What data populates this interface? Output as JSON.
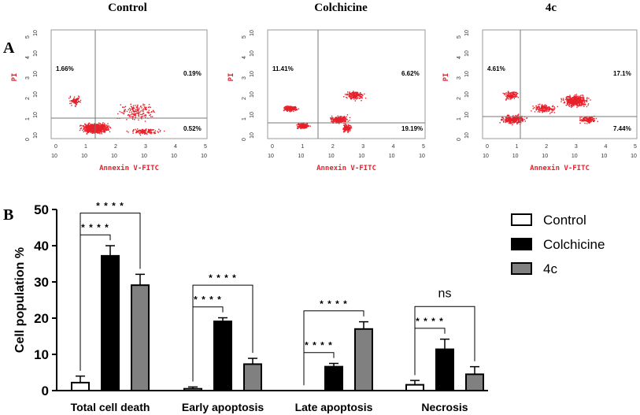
{
  "panels": {
    "a": "A",
    "b": "B"
  },
  "flow": {
    "xlabel": "Annexin V-FITC",
    "ylabel": "PI",
    "tick_base": "10",
    "x_exponents": [
      "0",
      "1",
      "2",
      "3",
      "4",
      "5"
    ],
    "y_exponents": [
      "0",
      "1",
      "2",
      "3",
      "4",
      "5"
    ],
    "quadrant_labels": [
      "UL",
      "UR",
      "LR"
    ],
    "plots": [
      {
        "title": "Control",
        "ul": "1.66%",
        "ur": "0.19%",
        "lr": "0.52%"
      },
      {
        "title": "Colchicine",
        "ul": "11.41%",
        "ur": "6.62%",
        "lr": "19.19%"
      },
      {
        "title": "4c",
        "ul": "4.61%",
        "ur": "17.1%",
        "lr": "7.44%"
      }
    ]
  },
  "colors": {
    "dots": "#e8202a",
    "control": "#ffffff",
    "colchicine": "#000000",
    "c4": "#808080",
    "axis_label": "#e8202a"
  },
  "chart_data": {
    "type": "bar",
    "title": "",
    "xlabel": "",
    "ylabel": "Cell population %",
    "ylim": [
      0,
      50
    ],
    "yticks": [
      0,
      10,
      20,
      30,
      40,
      50
    ],
    "categories": [
      "Total cell death",
      "Early apoptosis",
      "Late apoptosis",
      "Necrosis"
    ],
    "series": [
      {
        "name": "Control",
        "values": [
          2.2,
          0.5,
          0,
          1.6
        ],
        "errors": [
          1.8,
          0.5,
          0,
          1.2
        ]
      },
      {
        "name": "Colchicine",
        "values": [
          37.2,
          19.1,
          6.6,
          11.4
        ],
        "errors": [
          2.8,
          1.0,
          0.9,
          2.8
        ]
      },
      {
        "name": "4c",
        "values": [
          29.1,
          7.3,
          17.0,
          4.5
        ],
        "errors": [
          3.0,
          1.6,
          2.0,
          2.1
        ]
      }
    ],
    "significance": [
      {
        "category": 0,
        "from": 0,
        "to": 1,
        "label": "* * * *"
      },
      {
        "category": 0,
        "from": 0,
        "to": 2,
        "label": "* * * *"
      },
      {
        "category": 1,
        "from": 0,
        "to": 1,
        "label": "* * * *"
      },
      {
        "category": 1,
        "from": 0,
        "to": 2,
        "label": "* * * *"
      },
      {
        "category": 2,
        "from": 0,
        "to": 1,
        "label": "* * * *"
      },
      {
        "category": 2,
        "from": 0,
        "to": 2,
        "label": "* * * *"
      },
      {
        "category": 3,
        "from": 0,
        "to": 1,
        "label": "* * * *"
      },
      {
        "category": 3,
        "from": 0,
        "to": 2,
        "label": "ns"
      }
    ],
    "legend_position": "top-right"
  }
}
